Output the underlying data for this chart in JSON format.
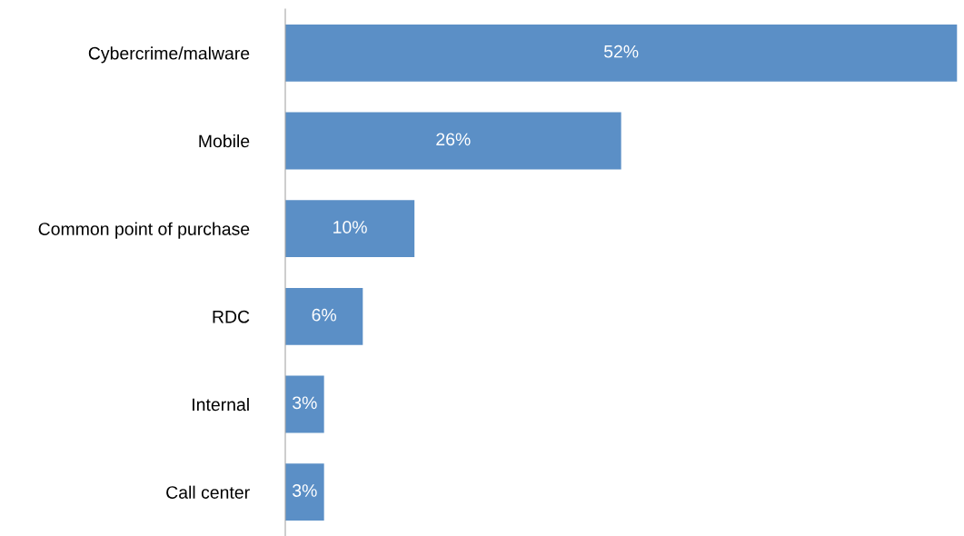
{
  "chart_data": {
    "type": "bar",
    "orientation": "horizontal",
    "categories": [
      "Cybercrime/malware",
      "Mobile",
      "Common point of purchase",
      "RDC",
      "Internal",
      "Call center"
    ],
    "values": [
      52,
      26,
      10,
      6,
      3,
      3
    ],
    "value_labels": [
      "52%",
      "26%",
      "10%",
      "6%",
      "3%",
      "3%"
    ],
    "color": "#5b8fc6",
    "grid": false,
    "legend": false
  }
}
